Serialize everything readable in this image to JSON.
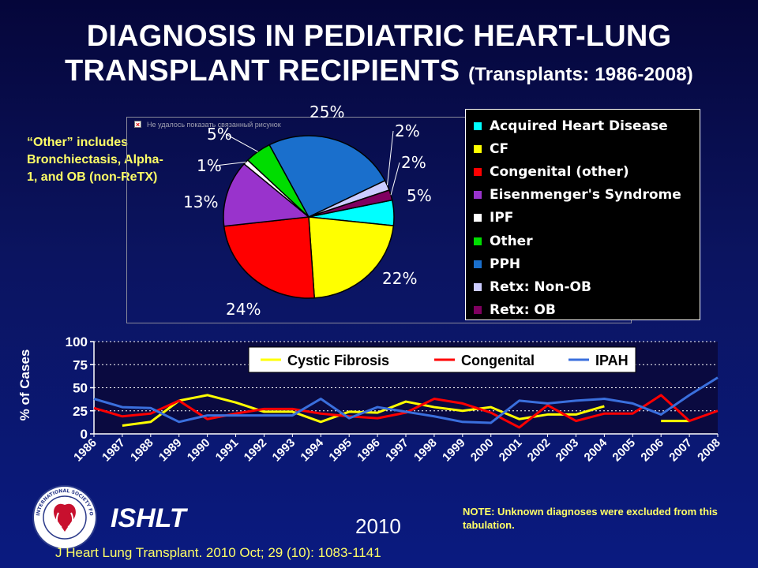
{
  "title": {
    "main_line1": "DIAGNOSIS IN PEDIATRIC HEART-LUNG",
    "main_line2": "TRANSPLANT RECIPIENTS",
    "sub": "(Transplants: 1986-2008)"
  },
  "note_left": "“Other” includes Bronchiectasis, Alpha-1, and OB (non-ReTX)",
  "broken_image_text": "Не удалось показать связанный рисунок",
  "note_right": "NOTE: Unknown diagnoses were excluded from this tabulation.",
  "brand": "ISHLT",
  "logo_text": "INTERNATIONAL SOCIETY FOR HEART & LUNG TRANSPLANTATION",
  "year": "2010",
  "citation": "J Heart Lung Transplant. 2010 Oct; 29 (10): 1083-1141",
  "colors": {
    "background": "#0a1a70",
    "title_text": "#ffffff",
    "note_text": "#ffff66"
  },
  "chart_data": [
    {
      "type": "pie",
      "slices": [
        {
          "name": "Acquired Heart Disease",
          "value": 5,
          "label": "5%",
          "color": "#00ffff"
        },
        {
          "name": "CF",
          "value": 22,
          "label": "22%",
          "color": "#ffff00"
        },
        {
          "name": "Congenital (other)",
          "value": 24,
          "label": "24%",
          "color": "#ff0000"
        },
        {
          "name": "Eisenmenger's Syndrome",
          "value": 13,
          "label": "13%",
          "color": "#9933cc"
        },
        {
          "name": "IPF",
          "value": 1,
          "label": "1%",
          "color": "#ffffff"
        },
        {
          "name": "Other",
          "value": 5,
          "label": "5%",
          "color": "#00dd00"
        },
        {
          "name": "PPH",
          "value": 25,
          "label": "25%",
          "color": "#1a6fcc"
        },
        {
          "name": "Retx: Non-OB",
          "value": 2,
          "label": "2%",
          "color": "#ccccff"
        },
        {
          "name": "Retx: OB",
          "value": 2,
          "label": "2%",
          "color": "#800060"
        }
      ],
      "legend_position": "right"
    },
    {
      "type": "line",
      "ylabel": "% of Cases",
      "ylim": [
        0,
        100
      ],
      "yticks": [
        0,
        25,
        50,
        75,
        100
      ],
      "grid": "horizontal dashed",
      "legend_position": "top",
      "categories": [
        "1986",
        "1987",
        "1988",
        "1989",
        "1990",
        "1991",
        "1992",
        "1993",
        "1994",
        "1995",
        "1996",
        "1997",
        "1998",
        "1999",
        "2000",
        "2001",
        "2002",
        "2003",
        "2004",
        "2005",
        "2006",
        "2007",
        "2008"
      ],
      "series": [
        {
          "name": "Cystic Fibrosis",
          "color": "#ffff00",
          "values": [
            null,
            9,
            13,
            36,
            42,
            34,
            24,
            24,
            13,
            24,
            23,
            35,
            29,
            25,
            29,
            16,
            21,
            21,
            30,
            null,
            14,
            14,
            null
          ]
        },
        {
          "name": "Congenital",
          "color": "#ff0000",
          "values": [
            28,
            19,
            22,
            36,
            16,
            22,
            27,
            27,
            22,
            19,
            17,
            23,
            38,
            33,
            23,
            7,
            31,
            14,
            22,
            22,
            42,
            14,
            25
          ]
        },
        {
          "name": "IPAH",
          "color": "#3a6fdd",
          "values": [
            38,
            29,
            28,
            13,
            20,
            20,
            20,
            20,
            38,
            17,
            29,
            24,
            19,
            13,
            12,
            36,
            33,
            36,
            38,
            33,
            21,
            42,
            61
          ]
        }
      ]
    }
  ]
}
